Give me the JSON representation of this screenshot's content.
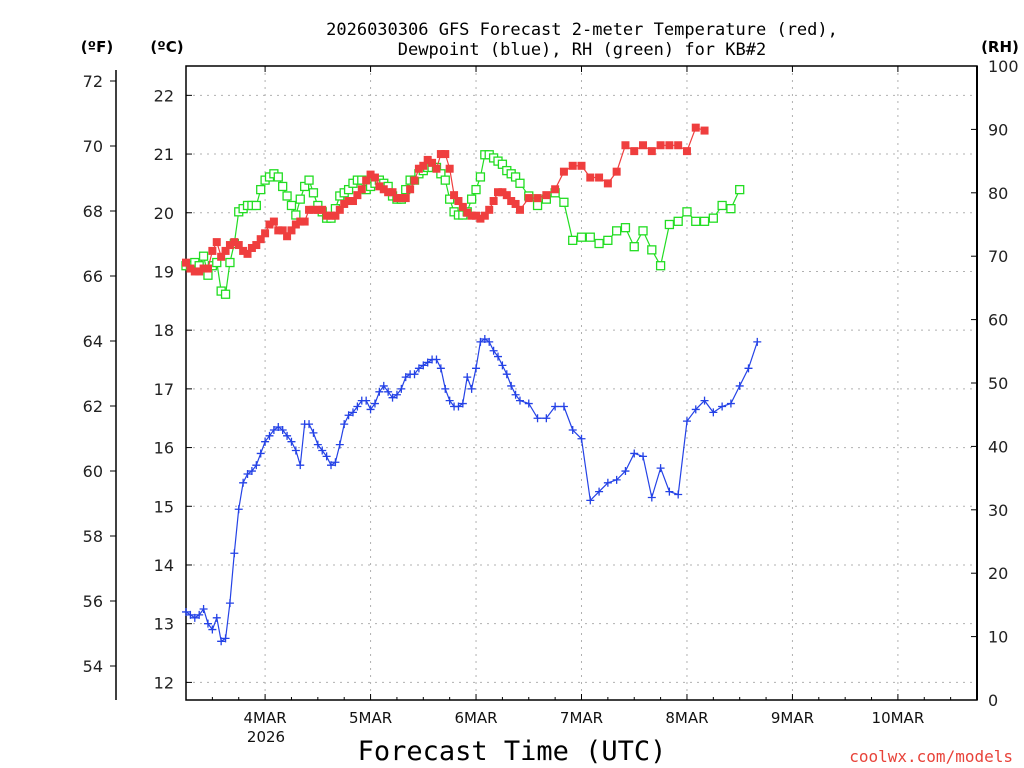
{
  "chart_data": {
    "type": "line",
    "title": "2026030306 GFS Forecast 2-meter Temperature (red),",
    "title_line2": "Dewpoint (blue), RH (green) for KB#2",
    "xlabel": "Forecast Time (UTC)",
    "credit": "coolwx.com/models",
    "year_label": "2026",
    "left_axis_f": {
      "unit": "(ºF)",
      "ticks": [
        "72",
        "70",
        "68",
        "66",
        "64",
        "62",
        "60",
        "58",
        "56",
        "54"
      ]
    },
    "left_axis_c": {
      "unit": "(ºC)",
      "ylim": [
        11.7,
        22.5
      ],
      "ticks": [
        12,
        13,
        14,
        15,
        16,
        17,
        18,
        19,
        20,
        21,
        22
      ]
    },
    "right_axis": {
      "unit": "(RH)",
      "ylim": [
        0,
        100
      ],
      "ticks": [
        0,
        10,
        20,
        30,
        40,
        50,
        60,
        70,
        80,
        90,
        100
      ]
    },
    "x_range_hours": [
      0,
      180
    ],
    "x_ticks": [
      {
        "label": "4MAR",
        "hour": 18
      },
      {
        "label": "5MAR",
        "hour": 42
      },
      {
        "label": "6MAR",
        "hour": 66
      },
      {
        "label": "7MAR",
        "hour": 90
      },
      {
        "label": "8MAR",
        "hour": 114
      },
      {
        "label": "9MAR",
        "hour": 138
      },
      {
        "label": "10MAR",
        "hour": 162
      }
    ],
    "series": [
      {
        "name": "2-meter Temperature",
        "axis": "celsius",
        "color": "#ef3e3e",
        "marker": "square-filled",
        "points": [
          [
            0,
            19.15
          ],
          [
            1,
            19.05
          ],
          [
            2,
            19.0
          ],
          [
            3,
            19.0
          ],
          [
            4,
            19.05
          ],
          [
            5,
            19.05
          ],
          [
            6,
            19.35
          ],
          [
            7,
            19.5
          ],
          [
            8,
            19.25
          ],
          [
            9,
            19.35
          ],
          [
            10,
            19.45
          ],
          [
            11,
            19.5
          ],
          [
            12,
            19.45
          ],
          [
            13,
            19.35
          ],
          [
            14,
            19.3
          ],
          [
            15,
            19.4
          ],
          [
            16,
            19.45
          ],
          [
            17,
            19.55
          ],
          [
            18,
            19.65
          ],
          [
            19,
            19.8
          ],
          [
            20,
            19.85
          ],
          [
            21,
            19.7
          ],
          [
            22,
            19.7
          ],
          [
            23,
            19.6
          ],
          [
            24,
            19.7
          ],
          [
            25,
            19.8
          ],
          [
            26,
            19.85
          ],
          [
            27,
            19.85
          ],
          [
            28,
            20.05
          ],
          [
            29,
            20.05
          ],
          [
            30,
            20.05
          ],
          [
            31,
            20.05
          ],
          [
            32,
            19.95
          ],
          [
            33,
            19.95
          ],
          [
            34,
            19.95
          ],
          [
            35,
            20.05
          ],
          [
            36,
            20.15
          ],
          [
            37,
            20.2
          ],
          [
            38,
            20.2
          ],
          [
            39,
            20.3
          ],
          [
            40,
            20.4
          ],
          [
            41,
            20.55
          ],
          [
            42,
            20.65
          ],
          [
            43,
            20.6
          ],
          [
            44,
            20.45
          ],
          [
            45,
            20.4
          ],
          [
            46,
            20.35
          ],
          [
            47,
            20.35
          ],
          [
            48,
            20.25
          ],
          [
            49,
            20.25
          ],
          [
            50,
            20.25
          ],
          [
            51,
            20.4
          ],
          [
            52,
            20.55
          ],
          [
            53,
            20.75
          ],
          [
            54,
            20.8
          ],
          [
            55,
            20.9
          ],
          [
            56,
            20.85
          ],
          [
            57,
            20.75
          ],
          [
            58,
            21.0
          ],
          [
            59,
            21.0
          ],
          [
            60,
            20.75
          ],
          [
            61,
            20.3
          ],
          [
            62,
            20.2
          ],
          [
            63,
            20.1
          ],
          [
            64,
            20.0
          ],
          [
            65,
            19.95
          ],
          [
            66,
            19.95
          ],
          [
            67,
            19.9
          ],
          [
            68,
            19.95
          ],
          [
            69,
            20.05
          ],
          [
            70,
            20.2
          ],
          [
            71,
            20.35
          ],
          [
            72,
            20.35
          ],
          [
            73,
            20.3
          ],
          [
            74,
            20.2
          ],
          [
            75,
            20.15
          ],
          [
            76,
            20.05
          ],
          [
            78,
            20.25
          ],
          [
            80,
            20.25
          ],
          [
            82,
            20.3
          ],
          [
            84,
            20.4
          ],
          [
            86,
            20.7
          ],
          [
            88,
            20.8
          ],
          [
            90,
            20.8
          ],
          [
            92,
            20.6
          ],
          [
            94,
            20.6
          ],
          [
            96,
            20.5
          ],
          [
            98,
            20.7
          ],
          [
            100,
            21.15
          ],
          [
            102,
            21.05
          ],
          [
            104,
            21.15
          ],
          [
            106,
            21.05
          ],
          [
            108,
            21.15
          ],
          [
            110,
            21.15
          ],
          [
            112,
            21.15
          ],
          [
            114,
            21.05
          ],
          [
            116,
            21.45
          ],
          [
            118,
            21.4
          ]
        ]
      },
      {
        "name": "Dewpoint",
        "axis": "celsius",
        "color": "#2442e6",
        "marker": "plus",
        "points": [
          [
            0,
            13.2
          ],
          [
            1,
            13.15
          ],
          [
            2,
            13.1
          ],
          [
            3,
            13.15
          ],
          [
            4,
            13.25
          ],
          [
            5,
            13.0
          ],
          [
            6,
            12.9
          ],
          [
            7,
            13.1
          ],
          [
            8,
            12.7
          ],
          [
            9,
            12.75
          ],
          [
            10,
            13.35
          ],
          [
            11,
            14.2
          ],
          [
            12,
            14.95
          ],
          [
            13,
            15.4
          ],
          [
            14,
            15.55
          ],
          [
            15,
            15.6
          ],
          [
            16,
            15.7
          ],
          [
            17,
            15.9
          ],
          [
            18,
            16.1
          ],
          [
            19,
            16.2
          ],
          [
            20,
            16.3
          ],
          [
            21,
            16.35
          ],
          [
            22,
            16.3
          ],
          [
            23,
            16.2
          ],
          [
            24,
            16.1
          ],
          [
            25,
            15.95
          ],
          [
            26,
            15.7
          ],
          [
            27,
            16.4
          ],
          [
            28,
            16.4
          ],
          [
            29,
            16.25
          ],
          [
            30,
            16.05
          ],
          [
            31,
            15.95
          ],
          [
            32,
            15.85
          ],
          [
            33,
            15.7
          ],
          [
            34,
            15.75
          ],
          [
            35,
            16.05
          ],
          [
            36,
            16.4
          ],
          [
            37,
            16.55
          ],
          [
            38,
            16.6
          ],
          [
            39,
            16.7
          ],
          [
            40,
            16.8
          ],
          [
            41,
            16.8
          ],
          [
            42,
            16.65
          ],
          [
            43,
            16.75
          ],
          [
            44,
            16.95
          ],
          [
            45,
            17.05
          ],
          [
            46,
            16.95
          ],
          [
            47,
            16.85
          ],
          [
            48,
            16.9
          ],
          [
            49,
            17.0
          ],
          [
            50,
            17.2
          ],
          [
            51,
            17.25
          ],
          [
            52,
            17.25
          ],
          [
            53,
            17.35
          ],
          [
            54,
            17.4
          ],
          [
            55,
            17.45
          ],
          [
            56,
            17.5
          ],
          [
            57,
            17.5
          ],
          [
            58,
            17.35
          ],
          [
            59,
            17.0
          ],
          [
            60,
            16.8
          ],
          [
            61,
            16.7
          ],
          [
            62,
            16.7
          ],
          [
            63,
            16.75
          ],
          [
            64,
            17.2
          ],
          [
            65,
            17.0
          ],
          [
            66,
            17.35
          ],
          [
            67,
            17.8
          ],
          [
            68,
            17.85
          ],
          [
            69,
            17.8
          ],
          [
            70,
            17.65
          ],
          [
            71,
            17.55
          ],
          [
            72,
            17.4
          ],
          [
            73,
            17.25
          ],
          [
            74,
            17.05
          ],
          [
            75,
            16.9
          ],
          [
            76,
            16.8
          ],
          [
            78,
            16.75
          ],
          [
            80,
            16.5
          ],
          [
            82,
            16.5
          ],
          [
            84,
            16.7
          ],
          [
            86,
            16.7
          ],
          [
            88,
            16.3
          ],
          [
            90,
            16.15
          ],
          [
            92,
            15.1
          ],
          [
            94,
            15.25
          ],
          [
            96,
            15.4
          ],
          [
            98,
            15.45
          ],
          [
            100,
            15.6
          ],
          [
            102,
            15.9
          ],
          [
            104,
            15.85
          ],
          [
            106,
            15.15
          ],
          [
            108,
            15.65
          ],
          [
            110,
            15.25
          ],
          [
            112,
            15.2
          ],
          [
            114,
            16.45
          ],
          [
            116,
            16.65
          ],
          [
            118,
            16.8
          ],
          [
            120,
            16.6
          ],
          [
            122,
            16.7
          ],
          [
            124,
            16.75
          ],
          [
            126,
            17.05
          ],
          [
            128,
            17.35
          ],
          [
            130,
            17.8
          ]
        ]
      },
      {
        "name": "RH",
        "axis": "rh",
        "color": "#22dd22",
        "marker": "square-open",
        "points": [
          [
            0,
            68.5
          ],
          [
            1,
            68.5
          ],
          [
            2,
            69
          ],
          [
            3,
            68.5
          ],
          [
            4,
            70
          ],
          [
            5,
            67
          ],
          [
            6,
            68.5
          ],
          [
            7,
            69
          ],
          [
            8,
            64.5
          ],
          [
            9,
            64
          ],
          [
            10,
            69
          ],
          [
            11,
            72
          ],
          [
            12,
            77
          ],
          [
            13,
            77.5
          ],
          [
            14,
            78
          ],
          [
            15,
            78
          ],
          [
            16,
            78
          ],
          [
            17,
            80.5
          ],
          [
            18,
            82
          ],
          [
            19,
            82.5
          ],
          [
            20,
            83
          ],
          [
            21,
            82.5
          ],
          [
            22,
            81
          ],
          [
            23,
            79.5
          ],
          [
            24,
            78
          ],
          [
            25,
            76.5
          ],
          [
            26,
            79
          ],
          [
            27,
            81
          ],
          [
            28,
            82
          ],
          [
            29,
            80
          ],
          [
            30,
            78
          ],
          [
            31,
            77
          ],
          [
            32,
            76
          ],
          [
            33,
            76
          ],
          [
            34,
            77.5
          ],
          [
            35,
            79.5
          ],
          [
            36,
            80
          ],
          [
            37,
            80.5
          ],
          [
            38,
            81.5
          ],
          [
            39,
            82
          ],
          [
            40,
            82
          ],
          [
            41,
            80.5
          ],
          [
            42,
            81
          ],
          [
            43,
            81.5
          ],
          [
            44,
            82
          ],
          [
            45,
            81.5
          ],
          [
            46,
            81
          ],
          [
            47,
            79.5
          ],
          [
            48,
            79
          ],
          [
            49,
            79
          ],
          [
            50,
            80.5
          ],
          [
            51,
            82
          ],
          [
            52,
            82
          ],
          [
            53,
            83
          ],
          [
            54,
            83.5
          ],
          [
            55,
            84
          ],
          [
            56,
            84
          ],
          [
            57,
            84
          ],
          [
            58,
            83
          ],
          [
            59,
            82
          ],
          [
            60,
            79
          ],
          [
            61,
            77
          ],
          [
            62,
            76.5
          ],
          [
            63,
            76.5
          ],
          [
            64,
            77
          ],
          [
            65,
            79
          ],
          [
            66,
            80.5
          ],
          [
            67,
            82.5
          ],
          [
            68,
            86
          ],
          [
            69,
            86
          ],
          [
            70,
            85.5
          ],
          [
            71,
            85
          ],
          [
            72,
            84.5
          ],
          [
            73,
            83.5
          ],
          [
            74,
            83
          ],
          [
            75,
            82.5
          ],
          [
            76,
            81.5
          ],
          [
            78,
            79.5
          ],
          [
            80,
            78
          ],
          [
            82,
            79
          ],
          [
            84,
            80
          ],
          [
            86,
            78.5
          ],
          [
            88,
            72.5
          ],
          [
            90,
            73
          ],
          [
            92,
            73
          ],
          [
            94,
            72
          ],
          [
            96,
            72.5
          ],
          [
            98,
            74
          ],
          [
            100,
            74.5
          ],
          [
            102,
            71.5
          ],
          [
            104,
            74
          ],
          [
            106,
            71
          ],
          [
            108,
            68.5
          ],
          [
            110,
            75
          ],
          [
            112,
            75.5
          ],
          [
            114,
            77
          ],
          [
            116,
            75.5
          ],
          [
            118,
            75.5
          ],
          [
            120,
            76
          ],
          [
            122,
            78
          ],
          [
            124,
            77.5
          ],
          [
            126,
            80.5
          ]
        ]
      }
    ]
  }
}
